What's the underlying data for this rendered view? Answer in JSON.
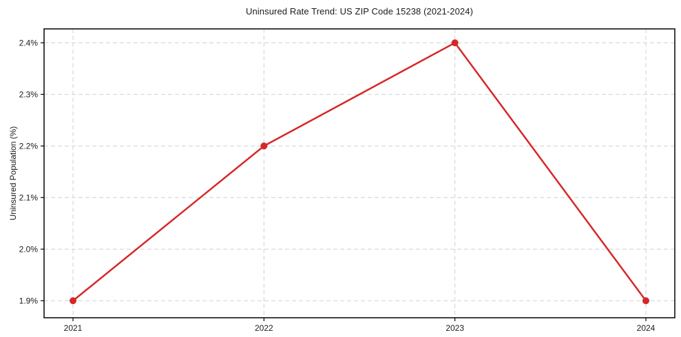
{
  "figure": {
    "background": "#ffffff"
  },
  "chart_data": {
    "type": "line",
    "title": "Uninsured Rate Trend: US ZIP Code 15238 (2021-2024)",
    "xlabel": "",
    "ylabel": "Uninsured Population (%)",
    "categories": [
      "2021",
      "2022",
      "2023",
      "2024"
    ],
    "values": [
      1.9,
      2.2,
      2.4,
      1.9
    ],
    "yticks": [
      {
        "value": 1.9,
        "label": "1.9%"
      },
      {
        "value": 2.0,
        "label": "2.0%"
      },
      {
        "value": 2.1,
        "label": "2.1%"
      },
      {
        "value": 2.2,
        "label": "2.2%"
      },
      {
        "value": 2.3,
        "label": "2.3%"
      },
      {
        "value": 2.4,
        "label": "2.4%"
      }
    ],
    "ylim": [
      1.867,
      2.427
    ],
    "grid": true,
    "grid_style": "dashed",
    "grid_color": "#d0d0d0",
    "line_color": "#d62728",
    "marker": "circle",
    "marker_color": "#d62728",
    "spine_color": "#000000",
    "legend_position": "none"
  }
}
